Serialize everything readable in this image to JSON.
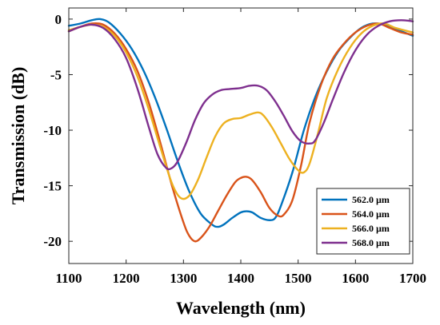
{
  "chart_data": {
    "type": "line",
    "title": "",
    "xlabel": "Wavelength (nm)",
    "ylabel": "Transmission (dB)",
    "xlim": [
      1100,
      1700
    ],
    "ylim": [
      -22,
      1
    ],
    "xticks": [
      1100,
      1200,
      1300,
      1400,
      1500,
      1600,
      1700
    ],
    "yticks": [
      0,
      -5,
      -10,
      -15,
      -20
    ],
    "xtick_labels": [
      "1100",
      "1200",
      "1300",
      "1400",
      "1500",
      "1600",
      "1700"
    ],
    "ytick_labels": [
      "0",
      "-5",
      "-10",
      "-15",
      "-20"
    ],
    "grid": false,
    "legend_position": "bottom-right",
    "series": [
      {
        "name": "562.0 µm",
        "color": "#0072BD",
        "x": [
          1100,
          1120,
          1140,
          1155,
          1170,
          1190,
          1210,
          1230,
          1250,
          1270,
          1290,
          1310,
          1330,
          1350,
          1360,
          1370,
          1385,
          1400,
          1410,
          1420,
          1435,
          1450,
          1460,
          1470,
          1490,
          1510,
          1530,
          1550,
          1570,
          1590,
          1610,
          1630,
          1650,
          1670,
          1700
        ],
        "y": [
          -0.6,
          -0.4,
          -0.1,
          0.0,
          -0.3,
          -1.3,
          -2.7,
          -4.6,
          -7.0,
          -9.8,
          -12.8,
          -15.5,
          -17.5,
          -18.5,
          -18.7,
          -18.5,
          -17.9,
          -17.4,
          -17.3,
          -17.4,
          -17.9,
          -18.1,
          -17.9,
          -16.8,
          -13.8,
          -10.0,
          -7.0,
          -4.7,
          -2.9,
          -1.7,
          -0.8,
          -0.4,
          -0.5,
          -0.9,
          -1.5
        ]
      },
      {
        "name": "564.0 µm",
        "color": "#D95319",
        "x": [
          1100,
          1120,
          1140,
          1160,
          1180,
          1200,
          1220,
          1240,
          1260,
          1280,
          1300,
          1310,
          1320,
          1330,
          1345,
          1360,
          1375,
          1390,
          1400,
          1410,
          1420,
          1435,
          1450,
          1465,
          1475,
          1490,
          1505,
          1520,
          1540,
          1560,
          1580,
          1600,
          1620,
          1640,
          1660,
          1680,
          1700
        ],
        "y": [
          -1.1,
          -0.7,
          -0.4,
          -0.5,
          -1.3,
          -2.7,
          -4.7,
          -7.6,
          -11.2,
          -15.0,
          -18.3,
          -19.5,
          -20.0,
          -19.7,
          -18.7,
          -17.3,
          -15.9,
          -14.7,
          -14.3,
          -14.2,
          -14.5,
          -15.6,
          -17.0,
          -17.7,
          -17.6,
          -16.3,
          -13.2,
          -9.3,
          -5.9,
          -3.6,
          -2.2,
          -1.2,
          -0.6,
          -0.4,
          -0.8,
          -1.2,
          -1.4
        ]
      },
      {
        "name": "566.0 µm",
        "color": "#EDB120",
        "x": [
          1100,
          1120,
          1140,
          1160,
          1180,
          1200,
          1220,
          1240,
          1260,
          1280,
          1295,
          1310,
          1325,
          1340,
          1355,
          1370,
          1385,
          1400,
          1415,
          1430,
          1440,
          1455,
          1470,
          1485,
          1500,
          1510,
          1520,
          1535,
          1550,
          1570,
          1590,
          1610,
          1630,
          1650,
          1670,
          1700
        ],
        "y": [
          -1.0,
          -0.7,
          -0.5,
          -0.7,
          -1.5,
          -3.0,
          -5.2,
          -8.2,
          -11.6,
          -14.8,
          -16.1,
          -15.9,
          -14.5,
          -12.5,
          -10.6,
          -9.4,
          -9.0,
          -8.9,
          -8.6,
          -8.4,
          -8.7,
          -9.8,
          -11.2,
          -12.6,
          -13.6,
          -13.8,
          -13.0,
          -10.2,
          -7.1,
          -4.5,
          -2.6,
          -1.3,
          -0.6,
          -0.4,
          -0.8,
          -1.2
        ]
      },
      {
        "name": "568.0 µm",
        "color": "#7E2F8E",
        "x": [
          1100,
          1120,
          1140,
          1160,
          1180,
          1200,
          1220,
          1240,
          1255,
          1270,
          1280,
          1290,
          1305,
          1320,
          1335,
          1350,
          1365,
          1380,
          1400,
          1415,
          1430,
          1445,
          1460,
          1475,
          1490,
          1505,
          1520,
          1530,
          1545,
          1560,
          1580,
          1600,
          1620,
          1640,
          1660,
          1680,
          1700
        ],
        "y": [
          -1.1,
          -0.7,
          -0.5,
          -0.8,
          -1.8,
          -3.5,
          -6.3,
          -9.8,
          -12.2,
          -13.4,
          -13.4,
          -12.8,
          -11.1,
          -9.1,
          -7.6,
          -6.8,
          -6.4,
          -6.3,
          -6.2,
          -6.0,
          -6.0,
          -6.4,
          -7.4,
          -8.7,
          -10.1,
          -11.0,
          -11.2,
          -10.9,
          -9.3,
          -7.3,
          -4.8,
          -2.8,
          -1.4,
          -0.6,
          -0.2,
          -0.1,
          -0.2
        ]
      }
    ]
  }
}
